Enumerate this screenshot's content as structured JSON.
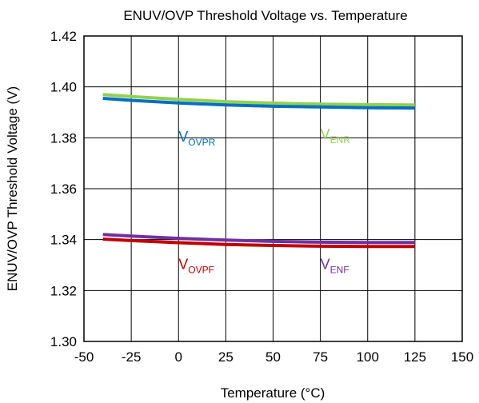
{
  "chart_data": {
    "type": "line",
    "title": "ENUV/OVP Threshold Voltage vs. Temperature",
    "xlabel": "Temperature (°C)",
    "ylabel": "ENUV/OVP Threshold Voltage (V)",
    "xlim": [
      -50,
      150
    ],
    "ylim": [
      1.3,
      1.42
    ],
    "xticks": [
      -50,
      -25,
      0,
      25,
      50,
      75,
      100,
      125,
      150
    ],
    "yticks": [
      "1.30",
      "1.32",
      "1.34",
      "1.36",
      "1.38",
      "1.40",
      "1.42"
    ],
    "grid": true,
    "legend": "none",
    "x": [
      -40,
      -25,
      0,
      25,
      50,
      75,
      100,
      125
    ],
    "series": [
      {
        "id": "venr",
        "label_main": "V",
        "label_sub": "ENR",
        "color": "#92D050",
        "values": [
          1.397,
          1.3962,
          1.3951,
          1.3942,
          1.3936,
          1.3932,
          1.393,
          1.3929
        ]
      },
      {
        "id": "vovpr",
        "label_main": "V",
        "label_sub": "OVPR",
        "color": "#0070C0",
        "values": [
          1.3955,
          1.3947,
          1.3937,
          1.3929,
          1.3924,
          1.3921,
          1.3918,
          1.3917
        ]
      },
      {
        "id": "venf",
        "label_main": "V",
        "label_sub": "ENF",
        "color": "#7030A0",
        "values": [
          1.342,
          1.3414,
          1.3405,
          1.3398,
          1.3393,
          1.339,
          1.3389,
          1.3389
        ]
      },
      {
        "id": "vovpf",
        "label_main": "V",
        "label_sub": "OVPF",
        "color": "#C00000",
        "values": [
          1.3402,
          1.3396,
          1.3388,
          1.3381,
          1.3377,
          1.3374,
          1.3373,
          1.3373
        ]
      }
    ]
  }
}
